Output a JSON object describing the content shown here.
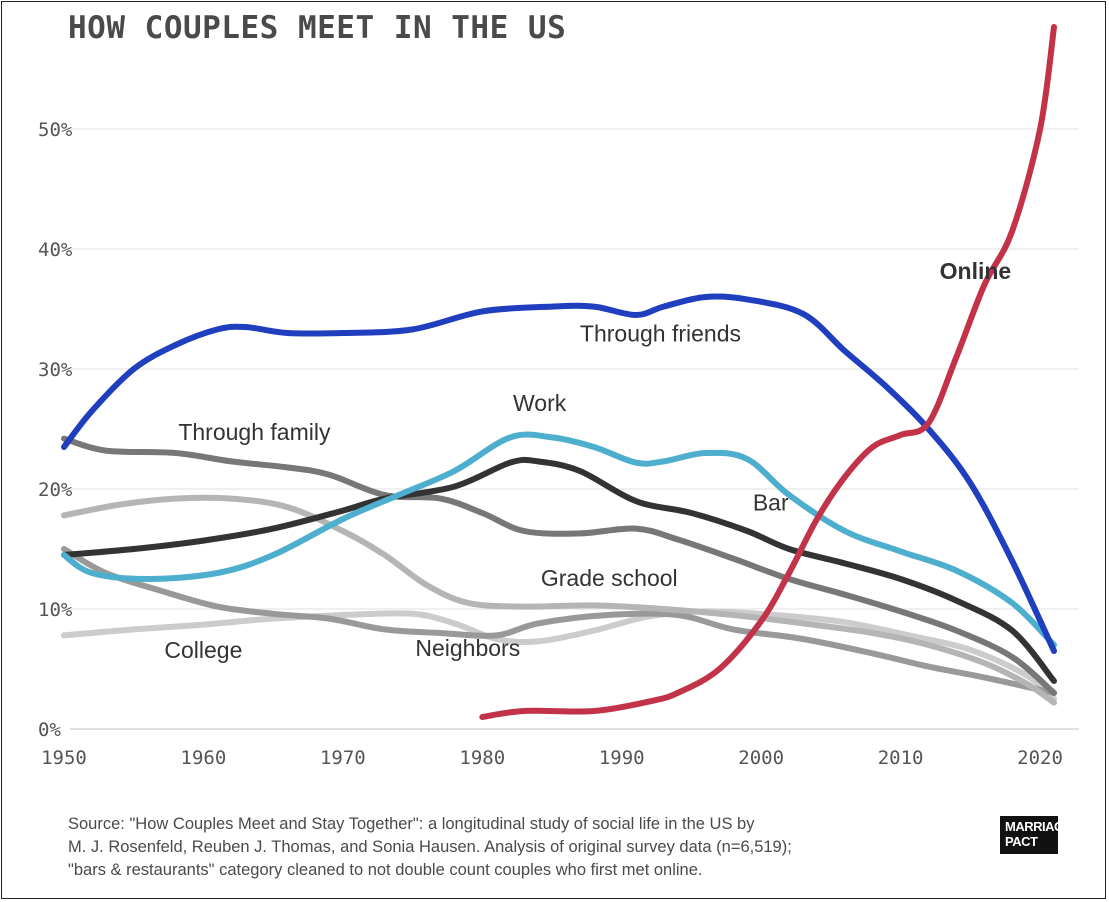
{
  "chart_data": {
    "type": "line",
    "title": "HOW COUPLES MEET IN THE US",
    "xlim": [
      1950,
      2021
    ],
    "ylim": [
      0,
      50
    ],
    "x_ticks": [
      "1950",
      "1960",
      "1970",
      "1980",
      "1990",
      "2000",
      "2010",
      "2020"
    ],
    "y_ticks": [
      "0%",
      "10%",
      "20%",
      "30%",
      "40%",
      "50%"
    ],
    "grid": true,
    "series": [
      {
        "name": "Through friends",
        "color": "#1f3fbf",
        "points": [
          [
            1950,
            23.5
          ],
          [
            1952,
            26.5
          ],
          [
            1955,
            30
          ],
          [
            1958,
            32
          ],
          [
            1961,
            33.3
          ],
          [
            1963,
            33.5
          ],
          [
            1966,
            33
          ],
          [
            1970,
            33
          ],
          [
            1975,
            33.3
          ],
          [
            1980,
            34.8
          ],
          [
            1985,
            35.2
          ],
          [
            1988,
            35.2
          ],
          [
            1991,
            34.5
          ],
          [
            1993,
            35.2
          ],
          [
            1996,
            36
          ],
          [
            1999,
            35.8
          ],
          [
            2003,
            34.6
          ],
          [
            2006,
            31.5
          ],
          [
            2009,
            28.5
          ],
          [
            2012,
            25
          ],
          [
            2015,
            20.5
          ],
          [
            2018,
            14
          ],
          [
            2021,
            6.5
          ]
        ]
      },
      {
        "name": "Online",
        "color": "#c2334a",
        "points": [
          [
            1980,
            1
          ],
          [
            1983,
            1.5
          ],
          [
            1988,
            1.5
          ],
          [
            1992,
            2.3
          ],
          [
            1994,
            3
          ],
          [
            1997,
            5
          ],
          [
            2000,
            9
          ],
          [
            2002,
            13
          ],
          [
            2004,
            17.5
          ],
          [
            2006,
            21
          ],
          [
            2008,
            23.5
          ],
          [
            2010,
            24.5
          ],
          [
            2012,
            25.5
          ],
          [
            2014,
            31
          ],
          [
            2016,
            37
          ],
          [
            2018,
            41.5
          ],
          [
            2020,
            50
          ],
          [
            2021,
            58.5
          ]
        ]
      },
      {
        "name": "Work",
        "color": "#4eaecd",
        "points": [
          [
            1950,
            14.5
          ],
          [
            1952,
            13
          ],
          [
            1956,
            12.5
          ],
          [
            1961,
            13
          ],
          [
            1965,
            14.5
          ],
          [
            1970,
            17.5
          ],
          [
            1974,
            19.5
          ],
          [
            1978,
            21.5
          ],
          [
            1982,
            24.3
          ],
          [
            1985,
            24.3
          ],
          [
            1988,
            23.5
          ],
          [
            1991,
            22.2
          ],
          [
            1993,
            22.3
          ],
          [
            1996,
            23
          ],
          [
            1999,
            22.5
          ],
          [
            2002,
            19.5
          ],
          [
            2006,
            16.5
          ],
          [
            2010,
            14.8
          ],
          [
            2014,
            13.2
          ],
          [
            2018,
            10.5
          ],
          [
            2021,
            7
          ]
        ]
      },
      {
        "name": "Bar",
        "color": "#333333",
        "points": [
          [
            1950,
            14.5
          ],
          [
            1955,
            15
          ],
          [
            1960,
            15.7
          ],
          [
            1965,
            16.7
          ],
          [
            1970,
            18.2
          ],
          [
            1973,
            19.2
          ],
          [
            1978,
            20.2
          ],
          [
            1982,
            22.2
          ],
          [
            1984,
            22.3
          ],
          [
            1987,
            21.5
          ],
          [
            1991,
            19
          ],
          [
            1995,
            18
          ],
          [
            1999,
            16.5
          ],
          [
            2002,
            15
          ],
          [
            2006,
            13.8
          ],
          [
            2010,
            12.5
          ],
          [
            2014,
            10.7
          ],
          [
            2018,
            8.2
          ],
          [
            2021,
            4
          ]
        ]
      },
      {
        "name": "Through family",
        "color": "#777777",
        "points": [
          [
            1950,
            24.2
          ],
          [
            1953,
            23.2
          ],
          [
            1958,
            23
          ],
          [
            1962,
            22.3
          ],
          [
            1966,
            21.8
          ],
          [
            1969,
            21.2
          ],
          [
            1973,
            19.5
          ],
          [
            1977,
            19.2
          ],
          [
            1980,
            18
          ],
          [
            1983,
            16.5
          ],
          [
            1987,
            16.3
          ],
          [
            1991,
            16.7
          ],
          [
            1994,
            15.8
          ],
          [
            1998,
            14.2
          ],
          [
            2002,
            12.5
          ],
          [
            2006,
            11.2
          ],
          [
            2010,
            9.8
          ],
          [
            2014,
            8.2
          ],
          [
            2018,
            6
          ],
          [
            2021,
            3
          ]
        ]
      },
      {
        "name": "Grade school",
        "color": "#b5b5b5",
        "points": [
          [
            1950,
            17.8
          ],
          [
            1954,
            18.7
          ],
          [
            1958,
            19.2
          ],
          [
            1962,
            19.2
          ],
          [
            1966,
            18.5
          ],
          [
            1970,
            16.5
          ],
          [
            1973,
            14.5
          ],
          [
            1976,
            12
          ],
          [
            1979,
            10.5
          ],
          [
            1983,
            10.2
          ],
          [
            1988,
            10.3
          ],
          [
            1993,
            10
          ],
          [
            1998,
            9.5
          ],
          [
            2003,
            8.8
          ],
          [
            2008,
            8
          ],
          [
            2012,
            7
          ],
          [
            2016,
            5.5
          ],
          [
            2019,
            3.8
          ],
          [
            2021,
            2.2
          ]
        ]
      },
      {
        "name": "Neighbors",
        "color": "#999999",
        "points": [
          [
            1950,
            15
          ],
          [
            1953,
            13
          ],
          [
            1957,
            11.5
          ],
          [
            1961,
            10.2
          ],
          [
            1965,
            9.6
          ],
          [
            1969,
            9.2
          ],
          [
            1973,
            8.3
          ],
          [
            1977,
            8
          ],
          [
            1981,
            7.8
          ],
          [
            1984,
            8.8
          ],
          [
            1989,
            9.5
          ],
          [
            1994,
            9.5
          ],
          [
            1998,
            8.3
          ],
          [
            2003,
            7.5
          ],
          [
            2008,
            6.3
          ],
          [
            2012,
            5.2
          ],
          [
            2016,
            4.3
          ],
          [
            2021,
            3
          ]
        ]
      },
      {
        "name": "College",
        "color": "#cccccc",
        "points": [
          [
            1950,
            7.8
          ],
          [
            1955,
            8.3
          ],
          [
            1960,
            8.7
          ],
          [
            1965,
            9.2
          ],
          [
            1970,
            9.5
          ],
          [
            1975,
            9.6
          ],
          [
            1978,
            8.8
          ],
          [
            1981,
            7.5
          ],
          [
            1984,
            7.3
          ],
          [
            1988,
            8.2
          ],
          [
            1992,
            9.4
          ],
          [
            1996,
            9.8
          ],
          [
            2001,
            9.5
          ],
          [
            2006,
            8.9
          ],
          [
            2011,
            7.7
          ],
          [
            2015,
            6.6
          ],
          [
            2019,
            4.5
          ],
          [
            2021,
            2.5
          ]
        ]
      }
    ],
    "annotations": [
      {
        "text": "Through friends",
        "x": 1987,
        "y": 32.3,
        "series": "Through friends"
      },
      {
        "text": "Online",
        "x": 2012.8,
        "y": 37.5,
        "series": "Online"
      },
      {
        "text": "Work",
        "x": 1982.2,
        "y": 26.5,
        "series": "Work"
      },
      {
        "text": "Through family",
        "x": 1958.2,
        "y": 24.1,
        "series": "Through family"
      },
      {
        "text": "Bar",
        "x": 1999.4,
        "y": 18.2,
        "series": "Bar"
      },
      {
        "text": "Grade school",
        "x": 1984.2,
        "y": 11.9,
        "series": "Grade school"
      },
      {
        "text": "College",
        "x": 1957.2,
        "y": 5.9,
        "series": "College"
      },
      {
        "text": "Neighbors",
        "x": 1975.2,
        "y": 6.1,
        "series": "Neighbors"
      }
    ]
  },
  "footer": {
    "source_lines": [
      "Source: \"How Couples Meet and Stay Together\": a longitudinal study of social life in the US by",
      "M. J. Rosenfeld, Reuben J. Thomas, and Sonia Hausen. Analysis of original survey data (n=6,519);",
      "\"bars & restaurants\" category cleaned to not double count couples who first met online."
    ],
    "logo_line1": "MARRIAGE",
    "logo_line2": "PACT"
  }
}
